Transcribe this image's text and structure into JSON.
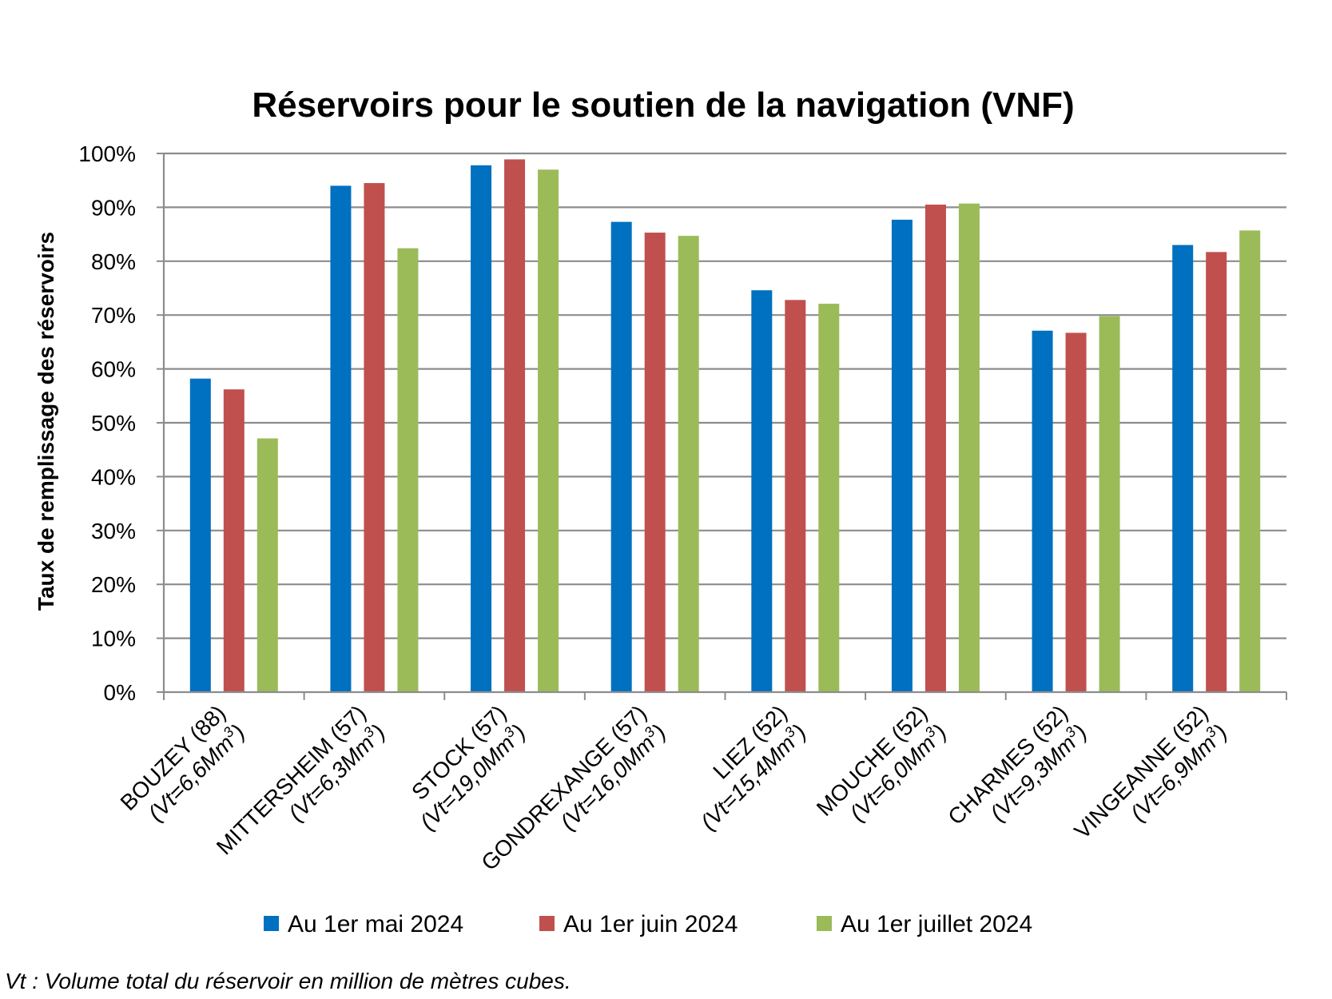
{
  "chart_data": {
    "type": "bar",
    "title": "Réservoirs pour le soutien de la navigation (VNF)",
    "ylabel": "Taux de remplissage des réservoirs",
    "xlabel": "",
    "ylim": [
      0,
      100
    ],
    "yticks": [
      "0%",
      "10%",
      "20%",
      "30%",
      "40%",
      "50%",
      "60%",
      "70%",
      "80%",
      "90%",
      "100%"
    ],
    "grid": true,
    "legend_position": "bottom",
    "categories": [
      {
        "name": "BOUZEY (88)",
        "vol_prefix": "(Vt=6,6Mm",
        "vol_sup": "3",
        "vol_suffix": ")"
      },
      {
        "name": "MITTERSHEIM (57)",
        "vol_prefix": "(Vt=6,3Mm",
        "vol_sup": "3",
        "vol_suffix": ")"
      },
      {
        "name": "STOCK (57)",
        "vol_prefix": "(Vt=19,0Mm",
        "vol_sup": "3",
        "vol_suffix": ")"
      },
      {
        "name": "GONDREXANGE (57)",
        "vol_prefix": "(Vt=16,0Mm",
        "vol_sup": "3",
        "vol_suffix": ")"
      },
      {
        "name": "LIEZ (52)",
        "vol_prefix": "(Vt=15,4Mm",
        "vol_sup": "3",
        "vol_suffix": ")"
      },
      {
        "name": "MOUCHE (52)",
        "vol_prefix": "(Vt=6,0Mm",
        "vol_sup": "3",
        "vol_suffix": ")"
      },
      {
        "name": "CHARMES (52)",
        "vol_prefix": "(Vt=9,3Mm",
        "vol_sup": "3",
        "vol_suffix": ")"
      },
      {
        "name": "VINGEANNE (52)",
        "vol_prefix": "(Vt=6,9Mm",
        "vol_sup": "3",
        "vol_suffix": ")"
      }
    ],
    "series": [
      {
        "name": "Au 1er mai 2024",
        "color": "#0070C0",
        "values": [
          58.2,
          94.0,
          97.8,
          87.3,
          74.6,
          87.7,
          67.1,
          83.0
        ]
      },
      {
        "name": "Au 1er juin 2024",
        "color": "#C0504D",
        "values": [
          56.2,
          94.5,
          98.9,
          85.3,
          72.8,
          90.5,
          66.7,
          81.7
        ]
      },
      {
        "name": "Au 1er juillet 2024",
        "color": "#9BBB59",
        "values": [
          47.1,
          82.4,
          97.0,
          84.7,
          72.1,
          90.7,
          69.8,
          85.7
        ]
      }
    ]
  },
  "footnote": "Vt : Volume total du réservoir en million de mètres cubes."
}
